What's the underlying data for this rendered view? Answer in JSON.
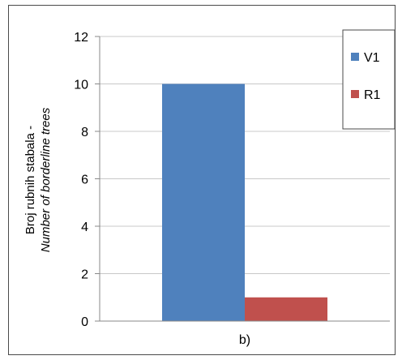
{
  "chart_data": {
    "type": "bar",
    "categories": [
      "b)"
    ],
    "series": [
      {
        "name": "V1",
        "values": [
          10
        ],
        "color": "#4F81BD"
      },
      {
        "name": "R1",
        "values": [
          1
        ],
        "color": "#C0504D"
      }
    ],
    "ylabel_line1": "Broj rubnih stabala -",
    "ylabel_line2": "Number of borderline trees",
    "ylim": [
      0,
      12
    ],
    "yticks": [
      0,
      2,
      4,
      6,
      8,
      10,
      12
    ],
    "grid": true,
    "legend_position": "top-right"
  }
}
